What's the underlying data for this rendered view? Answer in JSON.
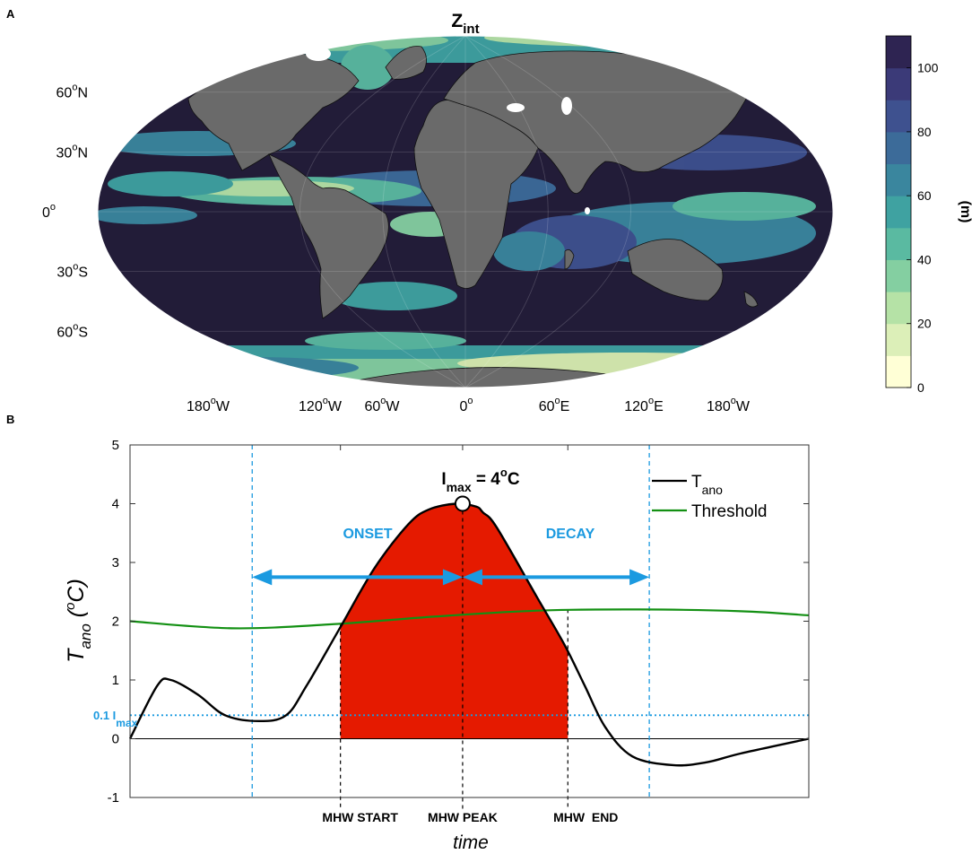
{
  "panel_a": {
    "letter": "A",
    "title_main": "Z",
    "title_sub": "int",
    "lat_labels": [
      {
        "deg": "60",
        "sup": "o",
        "dir": "N",
        "lat": 60
      },
      {
        "deg": "30",
        "sup": "o",
        "dir": "N",
        "lat": 30
      },
      {
        "deg": "0",
        "sup": "o",
        "dir": "",
        "lat": 0
      },
      {
        "deg": "30",
        "sup": "o",
        "dir": "S",
        "lat": -30
      },
      {
        "deg": "60",
        "sup": "o",
        "dir": "S",
        "lat": -60
      }
    ],
    "lon_labels": [
      {
        "deg": "180",
        "sup": "o",
        "dir": "W",
        "lon": -180
      },
      {
        "deg": "120",
        "sup": "o",
        "dir": "W",
        "lon": -120
      },
      {
        "deg": "60",
        "sup": "o",
        "dir": "W",
        "lon": -60
      },
      {
        "deg": "0",
        "sup": "o",
        "dir": "",
        "lon": 0
      },
      {
        "deg": "60",
        "sup": "o",
        "dir": "E",
        "lon": 60
      },
      {
        "deg": "120",
        "sup": "o",
        "dir": "E",
        "lon": 120
      },
      {
        "deg": "180",
        "sup": "o",
        "dir": "W",
        "lon": 180
      }
    ],
    "colorbar": {
      "unit_label": "(m)",
      "ticks": [
        "0",
        "20",
        "40",
        "60",
        "80",
        "100"
      ],
      "tick_values": [
        0,
        20,
        40,
        60,
        80,
        100
      ],
      "range": [
        0,
        110
      ],
      "colors": [
        "#ffffd6",
        "#dcefb8",
        "#b5e2a6",
        "#84cfa1",
        "#5abaa1",
        "#3fa2a1",
        "#3a869e",
        "#3c6b99",
        "#3e518f",
        "#3b3a78",
        "#2e2452"
      ]
    },
    "colors": {
      "ocean_deep": "#221c38",
      "land": "#6a6a6a",
      "shelf": "#d9eeb0"
    }
  },
  "panel_b": {
    "letter": "B",
    "legend": [
      {
        "main": "T",
        "sub": "ano",
        "color": "#000000"
      },
      {
        "main": "Threshold",
        "sub": "",
        "color": "#139013"
      }
    ],
    "annotations": {
      "imax_main": "I",
      "imax_sub": "max",
      "imax_rest": " = 4",
      "imax_sup": "o",
      "imax_unit": "C",
      "onset": "ONSET",
      "decay": "DECAY",
      "pct_main": "0.1 I",
      "pct_sub": "max",
      "mhw_start": "MHW START",
      "mhw_peak": "MHW PEAK",
      "mhw_end": "MHW  END"
    },
    "colors": {
      "fill": "#e51a00",
      "accent": "#1b9ae0",
      "threshold": "#139013",
      "series": "#000000"
    }
  },
  "chart_data": {
    "type": "line",
    "title": "",
    "xlabel": "time",
    "ylabel_main": "T",
    "ylabel_sub": "ano",
    "ylabel_rest_open": " (",
    "ylabel_sup": "o",
    "ylabel_rest_close": "C)",
    "ylim": [
      -1,
      5
    ],
    "yticks": [
      "-1",
      "0",
      "1",
      "2",
      "3",
      "4",
      "5"
    ],
    "ytick_values": [
      -1,
      0,
      1,
      2,
      3,
      4,
      5
    ],
    "grid": false,
    "legend_position": "top-right",
    "series": [
      {
        "name": "T_ano",
        "x": [
          0,
          0.04,
          0.06,
          0.1,
          0.14,
          0.19,
          0.23,
          0.26,
          0.31,
          0.36,
          0.41,
          0.44,
          0.48,
          0.51,
          0.52,
          0.54,
          0.6,
          0.64,
          0.67,
          0.7,
          0.74,
          0.8,
          0.85,
          0.9,
          1.0
        ],
        "y": [
          0,
          0.9,
          1.0,
          0.75,
          0.4,
          0.3,
          0.4,
          0.9,
          1.9,
          2.9,
          3.65,
          3.9,
          4.0,
          3.95,
          3.85,
          3.6,
          2.4,
          1.6,
          0.9,
          0.2,
          -0.3,
          -0.45,
          -0.4,
          -0.25,
          0
        ]
      },
      {
        "name": "Threshold",
        "x": [
          0,
          0.15,
          0.3,
          0.45,
          0.6,
          0.75,
          0.9,
          1.0
        ],
        "y": [
          2.0,
          1.88,
          1.95,
          2.08,
          2.18,
          2.2,
          2.17,
          2.1
        ]
      }
    ],
    "events": {
      "onset_x": 0.18,
      "start_x": 0.31,
      "peak_x": 0.49,
      "end_x": 0.645,
      "decay_x": 0.765
    },
    "imax": 4,
    "pct_level": 0.4
  }
}
